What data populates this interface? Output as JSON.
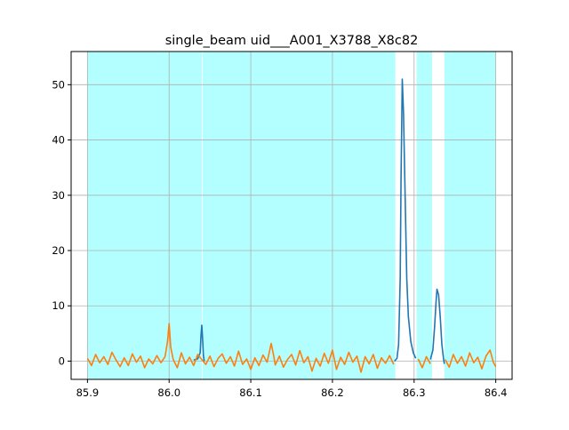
{
  "chart_data": {
    "type": "line",
    "title": "single_beam uid___A001_X3788_X8c82",
    "xlabel": "",
    "ylabel": "",
    "xlim": [
      85.88,
      86.42
    ],
    "ylim": [
      -3.3,
      56
    ],
    "grid": true,
    "x_ticks": [
      85.9,
      86.0,
      86.1,
      86.2,
      86.3,
      86.4
    ],
    "x_tick_labels": [
      "85.9",
      "86.0",
      "86.1",
      "86.2",
      "86.3",
      "86.4"
    ],
    "y_ticks": [
      0,
      10,
      20,
      30,
      40,
      50
    ],
    "y_tick_labels": [
      "0",
      "10",
      "20",
      "30",
      "40",
      "50"
    ],
    "shaded_regions": [
      {
        "x0": 85.9,
        "x1": 86.04,
        "color": "#b3ffff"
      },
      {
        "x0": 86.041,
        "x1": 86.277,
        "color": "#b3ffff"
      },
      {
        "x0": 86.303,
        "x1": 86.322,
        "color": "#b3ffff"
      },
      {
        "x0": 86.337,
        "x1": 86.4,
        "color": "#b3ffff"
      }
    ],
    "series": [
      {
        "color": "#1f77b4",
        "points": [
          [
            86.03,
            0.2
          ],
          [
            86.035,
            0.4
          ],
          [
            86.038,
            1.5
          ],
          [
            86.039,
            4.5
          ],
          [
            86.04,
            6.5
          ],
          [
            86.041,
            4.0
          ],
          [
            86.042,
            1.0
          ],
          [
            86.043,
            0.0
          ],
          [
            86.276,
            0.0
          ],
          [
            86.279,
            0.5
          ],
          [
            86.281,
            3.0
          ],
          [
            86.283,
            15.0
          ],
          [
            86.284,
            33.0
          ],
          [
            86.2855,
            51.0
          ],
          [
            86.287,
            45.0
          ],
          [
            86.289,
            30.0
          ],
          [
            86.291,
            15.0
          ],
          [
            86.293,
            8.0
          ],
          [
            86.296,
            3.5
          ],
          [
            86.299,
            1.5
          ],
          [
            86.302,
            0.5
          ],
          [
            86.32,
            0.3
          ],
          [
            86.323,
            2.0
          ],
          [
            86.325,
            6.0
          ],
          [
            86.327,
            11.0
          ],
          [
            86.328,
            13.0
          ],
          [
            86.33,
            12.0
          ],
          [
            86.332,
            8.0
          ],
          [
            86.334,
            3.0
          ],
          [
            86.336,
            0.5
          ],
          [
            86.337,
            -0.5
          ]
        ]
      },
      {
        "color": "#ff7f0e",
        "points": [
          [
            85.9,
            0.5
          ],
          [
            85.905,
            -0.8
          ],
          [
            85.91,
            1.2
          ],
          [
            85.915,
            -0.3
          ],
          [
            85.92,
            0.8
          ],
          [
            85.925,
            -0.6
          ],
          [
            85.93,
            1.6
          ],
          [
            85.935,
            0.2
          ],
          [
            85.94,
            -1.0
          ],
          [
            85.945,
            0.6
          ],
          [
            85.95,
            -0.8
          ],
          [
            85.955,
            1.3
          ],
          [
            85.96,
            -0.2
          ],
          [
            85.965,
            0.9
          ],
          [
            85.97,
            -1.2
          ],
          [
            85.975,
            0.4
          ],
          [
            85.98,
            -0.5
          ],
          [
            85.985,
            1.0
          ],
          [
            85.99,
            -0.3
          ],
          [
            85.995,
            0.8
          ],
          [
            85.998,
            3.5
          ],
          [
            86.0,
            6.8
          ],
          [
            86.002,
            2.5
          ],
          [
            86.005,
            0.3
          ],
          [
            86.01,
            -1.2
          ],
          [
            86.015,
            1.5
          ],
          [
            86.02,
            -0.5
          ],
          [
            86.025,
            0.7
          ],
          [
            86.03,
            -0.8
          ],
          [
            86.035,
            1.2
          ],
          [
            86.04,
            0.3
          ],
          [
            86.045,
            -0.6
          ],
          [
            86.05,
            0.9
          ],
          [
            86.055,
            -1.0
          ],
          [
            86.06,
            0.5
          ],
          [
            86.065,
            1.3
          ],
          [
            86.07,
            -0.4
          ],
          [
            86.075,
            0.8
          ],
          [
            86.08,
            -0.9
          ],
          [
            86.085,
            1.8
          ],
          [
            86.09,
            -0.6
          ],
          [
            86.095,
            0.4
          ],
          [
            86.1,
            -1.5
          ],
          [
            86.105,
            0.6
          ],
          [
            86.11,
            -0.8
          ],
          [
            86.115,
            1.1
          ],
          [
            86.12,
            -0.2
          ],
          [
            86.125,
            3.2
          ],
          [
            86.128,
            1.0
          ],
          [
            86.13,
            -0.7
          ],
          [
            86.135,
            0.9
          ],
          [
            86.14,
            -1.1
          ],
          [
            86.145,
            0.3
          ],
          [
            86.15,
            1.2
          ],
          [
            86.155,
            -0.7
          ],
          [
            86.16,
            1.9
          ],
          [
            86.165,
            -0.3
          ],
          [
            86.17,
            0.8
          ],
          [
            86.175,
            -1.8
          ],
          [
            86.18,
            0.5
          ],
          [
            86.185,
            -0.9
          ],
          [
            86.19,
            1.4
          ],
          [
            86.195,
            -0.4
          ],
          [
            86.2,
            2.0
          ],
          [
            86.205,
            -1.5
          ],
          [
            86.21,
            0.7
          ],
          [
            86.215,
            -0.6
          ],
          [
            86.22,
            1.6
          ],
          [
            86.225,
            -0.2
          ],
          [
            86.23,
            0.9
          ],
          [
            86.235,
            -2.0
          ],
          [
            86.24,
            0.8
          ],
          [
            86.245,
            -0.5
          ],
          [
            86.25,
            1.2
          ],
          [
            86.255,
            -1.3
          ],
          [
            86.26,
            0.6
          ],
          [
            86.265,
            -0.4
          ],
          [
            86.27,
            1.0
          ],
          [
            86.275,
            -0.6
          ],
          [
            86.305,
            0.4
          ],
          [
            86.31,
            -1.2
          ],
          [
            86.315,
            0.8
          ],
          [
            86.32,
            -0.5
          ],
          [
            86.338,
            0.3
          ],
          [
            86.343,
            -1.1
          ],
          [
            86.348,
            1.2
          ],
          [
            86.353,
            -0.4
          ],
          [
            86.358,
            0.8
          ],
          [
            86.363,
            -0.9
          ],
          [
            86.368,
            1.5
          ],
          [
            86.373,
            -0.3
          ],
          [
            86.378,
            0.7
          ],
          [
            86.383,
            -1.4
          ],
          [
            86.388,
            0.9
          ],
          [
            86.393,
            2.0
          ],
          [
            86.397,
            -0.2
          ],
          [
            86.4,
            -1.0
          ]
        ]
      }
    ]
  }
}
